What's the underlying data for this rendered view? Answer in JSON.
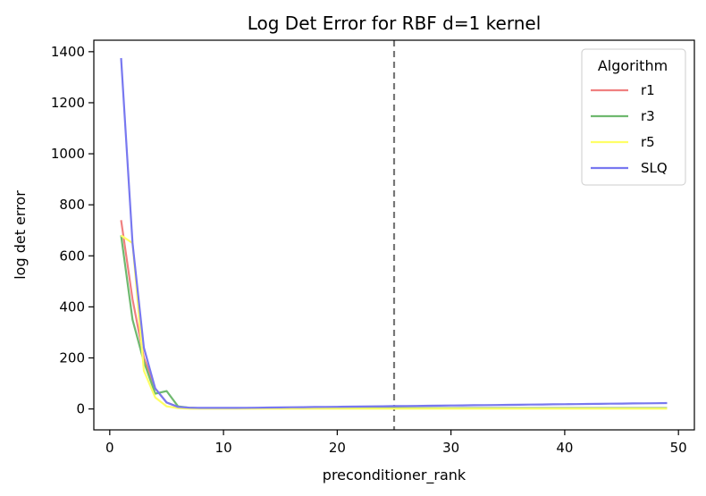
{
  "chart_data": {
    "type": "line",
    "title": "Log Det Error for RBF d=1 kernel",
    "xlabel": "preconditioner_rank",
    "ylabel": "log det error",
    "xlim": [
      -1.4,
      51.4
    ],
    "ylim": [
      -82,
      1445
    ],
    "xticks": [
      0,
      10,
      20,
      30,
      40,
      50
    ],
    "yticks": [
      0,
      200,
      400,
      600,
      800,
      1000,
      1200,
      1400
    ],
    "vline": {
      "x": 25,
      "color": "#777777",
      "style": "dashed"
    },
    "legend": {
      "title": "Algorithm",
      "position": "top-right"
    },
    "x": [
      1,
      2,
      3,
      4,
      5,
      6,
      7,
      8,
      9,
      10,
      11,
      12,
      13,
      14,
      15,
      16,
      17,
      18,
      19,
      20,
      21,
      22,
      23,
      24,
      25,
      26,
      27,
      28,
      29,
      30,
      31,
      32,
      33,
      34,
      35,
      36,
      37,
      38,
      39,
      40,
      41,
      42,
      43,
      44,
      45,
      46,
      47,
      48,
      49
    ],
    "series": [
      {
        "name": "r1",
        "color": "#f08080",
        "values": [
          740,
          430,
          200,
          80,
          25,
          8,
          4,
          3,
          3,
          3,
          3,
          3,
          3,
          3,
          3,
          3,
          3,
          3,
          3,
          3,
          3,
          3,
          3,
          3,
          3,
          3,
          3,
          3,
          3,
          3,
          3,
          3,
          3,
          3,
          3,
          3,
          3,
          3,
          3,
          3,
          3,
          3,
          3,
          3,
          3,
          3,
          3,
          3,
          3
        ]
      },
      {
        "name": "r3",
        "color": "#6fb96f",
        "values": [
          680,
          350,
          185,
          60,
          70,
          10,
          5,
          3,
          3,
          3,
          3,
          3,
          3,
          3,
          3,
          3,
          3,
          3,
          3,
          3,
          3,
          3,
          3,
          3,
          3,
          3,
          3,
          3,
          3,
          3,
          3,
          3,
          3,
          3,
          3,
          3,
          3,
          3,
          3,
          3,
          3,
          3,
          3,
          3,
          3,
          3,
          3,
          3,
          3
        ]
      },
      {
        "name": "r5",
        "color": "#ffff66",
        "values": [
          680,
          650,
          150,
          45,
          10,
          3,
          1,
          1,
          1,
          1,
          1,
          1,
          1,
          1,
          1,
          1,
          1,
          1,
          1,
          1,
          1,
          1,
          1,
          1,
          1,
          1,
          1,
          1,
          1,
          1,
          1,
          1,
          1,
          1,
          1,
          1,
          1,
          1,
          1,
          1,
          1,
          1,
          1,
          1,
          1,
          1,
          1,
          1,
          1
        ]
      },
      {
        "name": "SLQ",
        "color": "#7878f0",
        "values": [
          1375,
          650,
          240,
          80,
          25,
          8,
          5,
          4,
          4,
          4,
          4,
          4.5,
          5,
          5.5,
          6,
          6.5,
          7,
          7.5,
          8,
          8.5,
          9,
          9.5,
          10,
          10.5,
          11,
          11.5,
          12,
          12.5,
          13,
          13.5,
          14,
          14.5,
          15,
          15.5,
          16,
          16.5,
          17,
          17.5,
          18,
          18.5,
          19,
          19.5,
          20,
          20.5,
          21,
          21.5,
          22,
          22.5,
          23
        ]
      }
    ]
  }
}
